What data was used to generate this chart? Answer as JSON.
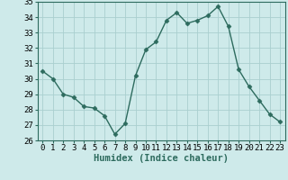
{
  "x": [
    0,
    1,
    2,
    3,
    4,
    5,
    6,
    7,
    8,
    9,
    10,
    11,
    12,
    13,
    14,
    15,
    16,
    17,
    18,
    19,
    20,
    21,
    22,
    23
  ],
  "y": [
    30.5,
    30.0,
    29.0,
    28.8,
    28.2,
    28.1,
    27.6,
    26.4,
    27.1,
    30.2,
    31.9,
    32.4,
    33.8,
    34.3,
    33.6,
    33.8,
    34.1,
    34.7,
    33.4,
    30.6,
    29.5,
    28.6,
    27.7,
    27.2
  ],
  "line_color": "#2d6b5e",
  "marker": "D",
  "marker_size": 2.5,
  "linewidth": 1.0,
  "bg_color": "#ceeaea",
  "grid_color": "#aacfcf",
  "xlabel": "Humidex (Indice chaleur)",
  "xlabel_fontsize": 7.5,
  "ylim": [
    26,
    35
  ],
  "xlim": [
    -0.5,
    23.5
  ],
  "yticks": [
    26,
    27,
    28,
    29,
    30,
    31,
    32,
    33,
    34,
    35
  ],
  "xticks": [
    0,
    1,
    2,
    3,
    4,
    5,
    6,
    7,
    8,
    9,
    10,
    11,
    12,
    13,
    14,
    15,
    16,
    17,
    18,
    19,
    20,
    21,
    22,
    23
  ],
  "tick_fontsize": 6.5,
  "spine_color": "#2d6b5e"
}
